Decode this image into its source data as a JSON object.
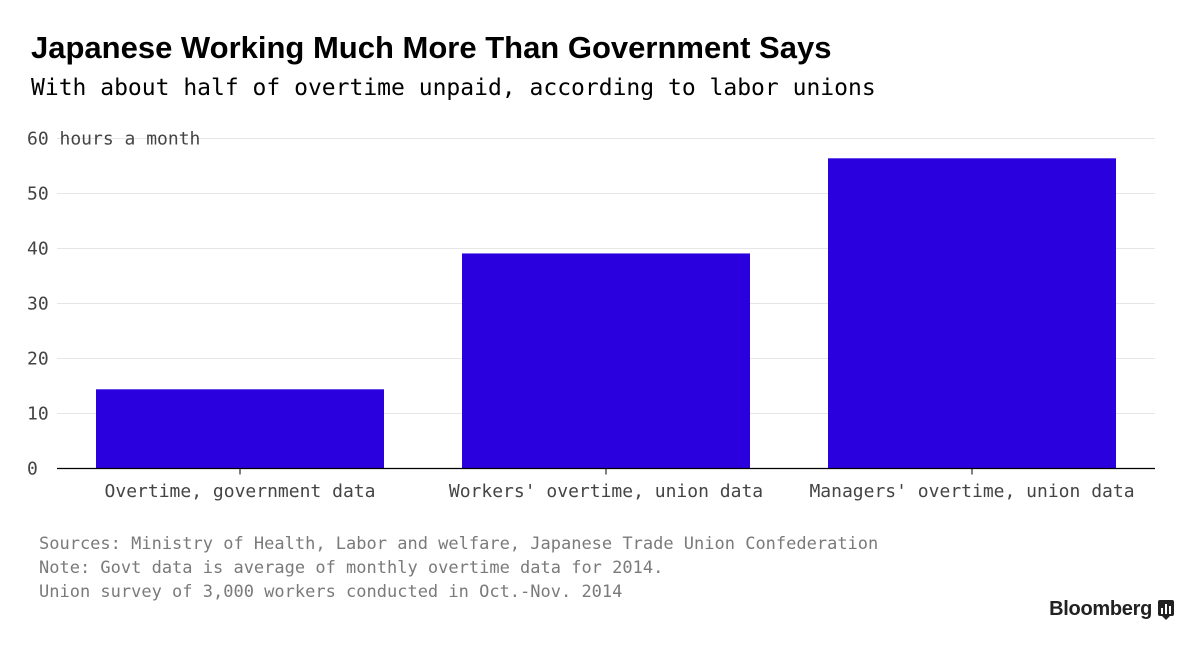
{
  "chart_data": {
    "type": "bar",
    "title": "Japanese Working Much More Than Government Says",
    "subtitle": "With about half of overtime unpaid, according to labor unions",
    "unit_label": "60 hours a month",
    "categories": [
      "Overtime, government data",
      "Workers' overtime, union data",
      "Managers' overtime, union data"
    ],
    "values": [
      14.4,
      39.1,
      56.4
    ],
    "ylim": [
      0,
      60
    ],
    "yticks": [
      0,
      10,
      20,
      30,
      40,
      50
    ],
    "xlabel": "",
    "ylabel": "",
    "grid": true,
    "bar_color": "#2b00de"
  },
  "notes": {
    "sources": "Sources: Ministry of Health, Labor and welfare, Japanese Trade Union Confederation",
    "note": "Note: Govt data is average of monthly overtime data for 2014.",
    "survey": "Union survey of 3,000 workers conducted in Oct.-Nov. 2014"
  },
  "brand": {
    "name": "Bloomberg",
    "icon": "bloomberg-chart-icon"
  }
}
